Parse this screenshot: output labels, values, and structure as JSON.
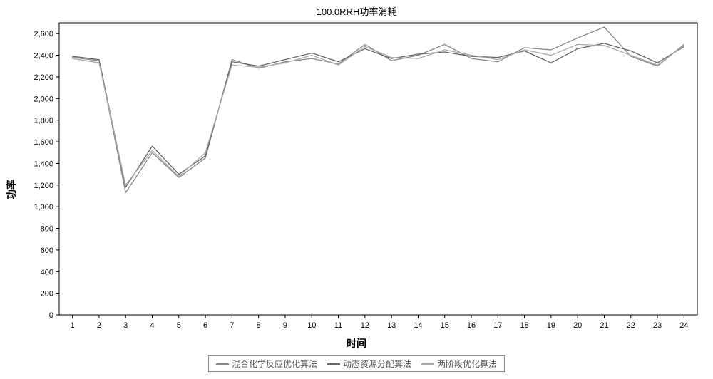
{
  "chart": {
    "type": "line",
    "title": "100.0RRH功率消耗",
    "title_fontsize": 13,
    "xlabel": "时间",
    "ylabel": "功率",
    "label_fontsize": 14,
    "label_fontweight": "bold",
    "background_color": "#ffffff",
    "plot_border_color": "#000000",
    "grid": false,
    "x": {
      "values": [
        1,
        2,
        3,
        4,
        5,
        6,
        7,
        8,
        9,
        10,
        11,
        12,
        13,
        14,
        15,
        16,
        17,
        18,
        19,
        20,
        21,
        22,
        23,
        24
      ],
      "lim": [
        0.5,
        24.5
      ],
      "tick_labels": [
        "1",
        "2",
        "3",
        "4",
        "5",
        "6",
        "7",
        "8",
        "9",
        "10",
        "11",
        "12",
        "13",
        "14",
        "15",
        "16",
        "17",
        "18",
        "19",
        "20",
        "21",
        "22",
        "23",
        "24"
      ],
      "tick_fontsize": 11
    },
    "y": {
      "lim": [
        0,
        2700
      ],
      "ticks": [
        0,
        200,
        400,
        600,
        800,
        1000,
        1200,
        1400,
        1600,
        1800,
        2000,
        2200,
        2400,
        2600
      ],
      "tick_labels": [
        "0",
        "200",
        "400",
        "600",
        "800",
        "1,000",
        "1,200",
        "1,400",
        "1,600",
        "1,800",
        "2,000",
        "2,200",
        "2,400",
        "2,600"
      ],
      "tick_fontsize": 11
    },
    "line_width": 1.3,
    "series": [
      {
        "name": "混合化学反应优化算法",
        "color": "#888888",
        "values": [
          2380,
          2350,
          1130,
          1500,
          1270,
          1450,
          2360,
          2280,
          2340,
          2370,
          2320,
          2500,
          2350,
          2400,
          2500,
          2370,
          2340,
          2470,
          2450,
          2560,
          2660,
          2390,
          2300,
          2500
        ]
      },
      {
        "name": "动态资源分配算法",
        "color": "#666666",
        "values": [
          2390,
          2360,
          1180,
          1560,
          1300,
          1470,
          2340,
          2300,
          2360,
          2420,
          2340,
          2460,
          2370,
          2410,
          2430,
          2390,
          2380,
          2440,
          2330,
          2460,
          2510,
          2440,
          2330,
          2480
        ]
      },
      {
        "name": "两阶段优化算法",
        "color": "#aaaaaa",
        "values": [
          2370,
          2330,
          1200,
          1520,
          1280,
          1500,
          2310,
          2290,
          2330,
          2400,
          2310,
          2480,
          2380,
          2370,
          2450,
          2400,
          2360,
          2450,
          2400,
          2500,
          2490,
          2400,
          2310,
          2490
        ]
      }
    ],
    "legend": {
      "position": "bottom-center",
      "border_color": "#888888",
      "text_color": "#555555",
      "fontsize": 12
    }
  }
}
